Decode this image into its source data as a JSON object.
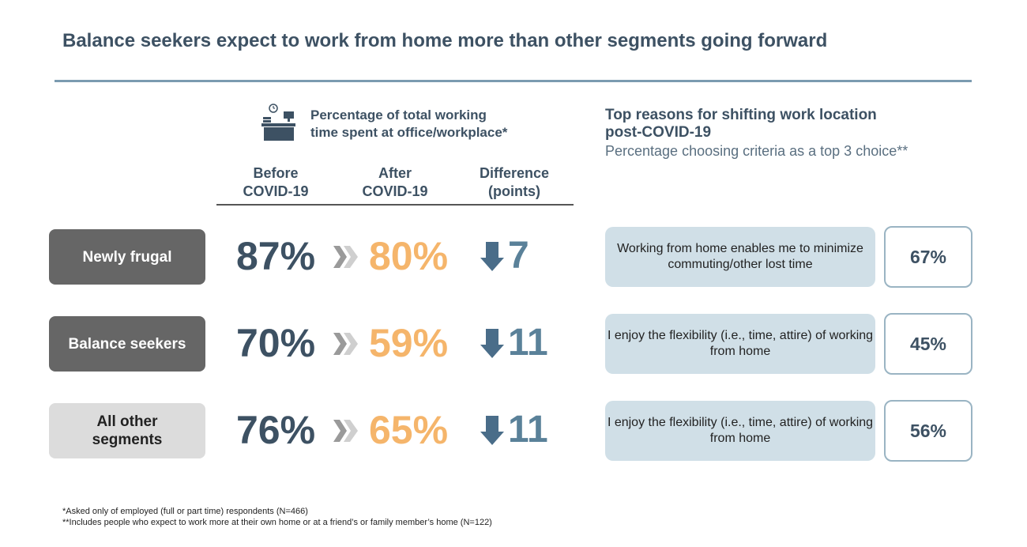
{
  "header": {
    "title": "Balance seekers expect to work from home more than other segments going forward"
  },
  "left_panel": {
    "title": "Percentage of total working\ntime spent at office/workplace*",
    "columns": [
      "Before\nCOVID-19",
      "After\nCOVID-19",
      "Difference\n(points)"
    ]
  },
  "right_panel": {
    "title": "Top reasons for shifting work location\npost-COVID-19",
    "subtitle": "Percentage choosing criteria as a top 3 choice**"
  },
  "rows": [
    {
      "segment": "Newly frugal",
      "before": "87%",
      "after": "80%",
      "difference": "7",
      "reason": "Working from home enables me to minimize commuting/other lost time",
      "reason_share": "67%"
    },
    {
      "segment": "Balance seekers",
      "before": "70%",
      "after": "59%",
      "difference": "11",
      "reason": "I enjoy the flexibility (i.e., time, attire) of working from home",
      "reason_share": "45%"
    },
    {
      "segment": "All other\nsegments",
      "before": "76%",
      "after": "65%",
      "difference": "11",
      "reason": "I enjoy the flexibility (i.e., time, attire) of working from home",
      "reason_share": "56%"
    }
  ],
  "footnotes": [
    "*Asked only of employed (full or part time) respondents (N=466)",
    "**Includes people who expect to work more at their own home or at a friend’s or family member’s home (N=122)"
  ]
}
